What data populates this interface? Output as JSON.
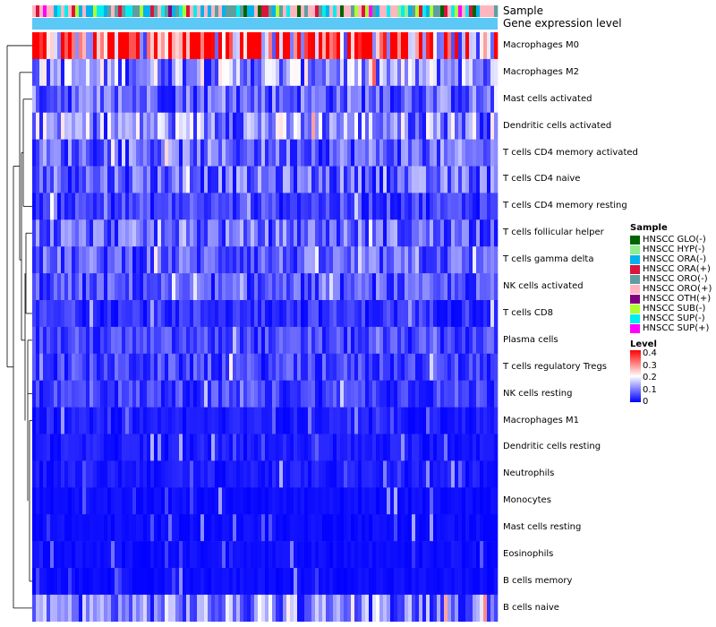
{
  "chart_data": {
    "type": "heatmap",
    "annotations": {
      "top_labels": [
        "Sample",
        "Gene expression level"
      ]
    },
    "rows": [
      "Macrophages M0",
      "Macrophages M2",
      "Mast cells activated",
      "Dendritic cells activated",
      "T cells CD4 memory activated",
      "T cells CD4 naive",
      "T cells CD4 memory resting",
      "T cells follicular helper",
      "T cells gamma delta",
      "NK cells activated",
      "T cells CD8",
      "Plasma cells",
      "T cells regulatory  Tregs",
      "NK cells resting",
      "Macrophages M1",
      "Dendritic cells resting",
      "Neutrophils",
      "Monocytes",
      "Mast cells resting",
      "Eosinophils",
      "B cells memory",
      "B cells naive"
    ],
    "row_mean_levels": [
      0.32,
      0.12,
      0.08,
      0.12,
      0.08,
      0.08,
      0.05,
      0.08,
      0.07,
      0.06,
      0.04,
      0.05,
      0.05,
      0.05,
      0.02,
      0.02,
      0.02,
      0.01,
      0.01,
      0.01,
      0.01,
      0.1
    ],
    "n_samples": 130,
    "legend_sample": {
      "title": "Sample",
      "items": [
        {
          "label": "HNSCC GLO(-)",
          "color": "#006400"
        },
        {
          "label": "HNSCC HYP(-)",
          "color": "#90EE90"
        },
        {
          "label": "HNSCC ORA(-)",
          "color": "#00B2EE"
        },
        {
          "label": "HNSCC ORA(+)",
          "color": "#DC143C"
        },
        {
          "label": "HNSCC ORO(-)",
          "color": "#5F9EA0"
        },
        {
          "label": "HNSCC ORO(+)",
          "color": "#FFB6C1"
        },
        {
          "label": "HNSCC OTH(+)",
          "color": "#800080"
        },
        {
          "label": "HNSCC SUB(-)",
          "color": "#ADFF2F"
        },
        {
          "label": "HNSCC SUP(-)",
          "color": "#00EEEE"
        },
        {
          "label": "HNSCC SUP(+)",
          "color": "#FF00FF"
        }
      ]
    },
    "legend_level": {
      "title": "Level",
      "ticks": [
        "0.4",
        "0.3",
        "0.2",
        "0.1",
        "0"
      ],
      "range": [
        0,
        0.4
      ],
      "colors": [
        "#0000FF",
        "#FFFFFF",
        "#FF0000"
      ]
    },
    "gene_expression_bar_color": "#5BC8F5"
  }
}
